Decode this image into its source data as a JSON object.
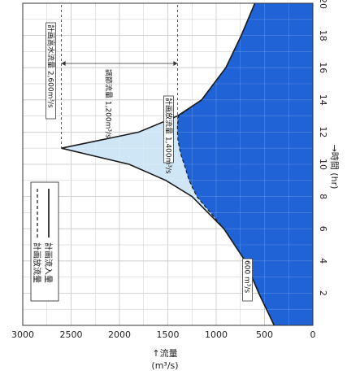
{
  "chart_data": {
    "type": "area",
    "orientation": "rotated-90-clockwise",
    "x_axis": {
      "label": "→時間 (hr)",
      "range": [
        0,
        20
      ],
      "ticks": [
        "2",
        "4",
        "6",
        "8",
        "10",
        "12",
        "14",
        "16",
        "18",
        "20"
      ]
    },
    "y_axis": {
      "label": "↑流量",
      "unit": "(m³/s)",
      "range": [
        0,
        3000
      ],
      "ticks": [
        "0",
        "500",
        "1000",
        "1500",
        "2000",
        "2500",
        "3000"
      ]
    },
    "grid": true,
    "series": [
      {
        "name": "計画流入量",
        "style": "solid",
        "x": [
          0,
          2,
          4,
          6,
          8,
          9,
          10,
          10.5,
          11,
          11.5,
          12,
          13,
          14,
          16,
          18,
          20
        ],
        "y": [
          400,
          560,
          700,
          920,
          1250,
          1520,
          1900,
          2250,
          2600,
          2200,
          1800,
          1400,
          1150,
          900,
          740,
          600
        ]
      },
      {
        "name": "計画放流量",
        "style": "dashed",
        "x": [
          0,
          2,
          4,
          6,
          8,
          9,
          10,
          10.5,
          11,
          11.5,
          12,
          12.4,
          13,
          14,
          16,
          18,
          20
        ],
        "y": [
          400,
          560,
          700,
          920,
          1200,
          1280,
          1330,
          1360,
          1380,
          1395,
          1400,
          1400,
          1390,
          1150,
          900,
          740,
          600
        ]
      }
    ],
    "annotations": {
      "peak_inflow": "計画高水流量 2,600m³/s",
      "regulated": "調節流量 1,200m³/s",
      "peak_outflow": "計画放流量 1,400m³/s",
      "base": "600 m³/s"
    },
    "legend": {
      "placement": "upper-left",
      "items": [
        "計画流入量",
        "計画放流量"
      ]
    },
    "colors": {
      "stored": "#cfe6f6",
      "released": "#1f63d6",
      "grid": "#bbbbbb"
    }
  }
}
